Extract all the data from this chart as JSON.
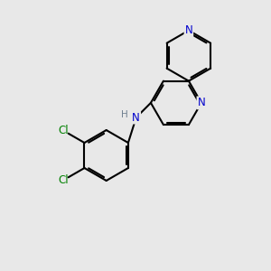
{
  "bg_color": "#e8e8e8",
  "bond_color": "#000000",
  "N_color": "#0000cc",
  "Cl_color": "#008000",
  "H_color": "#708090",
  "line_width": 1.5,
  "dbo": 0.07,
  "figsize": [
    3.0,
    3.0
  ],
  "dpi": 100,
  "xlim": [
    0,
    10
  ],
  "ylim": [
    0,
    10
  ]
}
